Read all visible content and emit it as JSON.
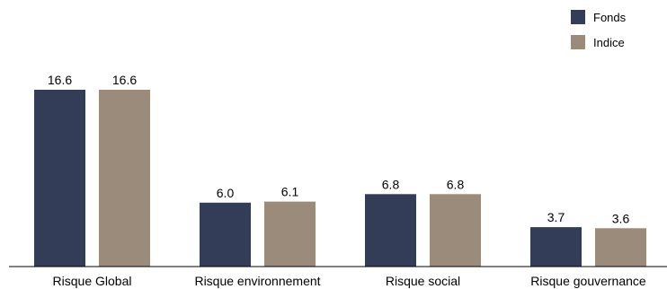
{
  "chart_data": {
    "type": "bar",
    "categories": [
      "Risque Global",
      "Risque environnement",
      "Risque social",
      "Risque gouvernance"
    ],
    "series": [
      {
        "name": "Fonds",
        "values": [
          16.6,
          6.0,
          6.8,
          3.7
        ],
        "color": "#333D57"
      },
      {
        "name": "Indice",
        "values": [
          16.6,
          6.1,
          6.8,
          3.6
        ],
        "color": "#9A8B7A"
      }
    ],
    "value_labels": [
      [
        "16.6",
        "6.0",
        "6.8",
        "3.7"
      ],
      [
        "16.6",
        "6.1",
        "6.8",
        "3.6"
      ]
    ],
    "ylim": [
      0,
      16.6
    ],
    "grid": false,
    "legend_position": "top-right",
    "title": "",
    "xlabel": "",
    "ylabel": ""
  }
}
